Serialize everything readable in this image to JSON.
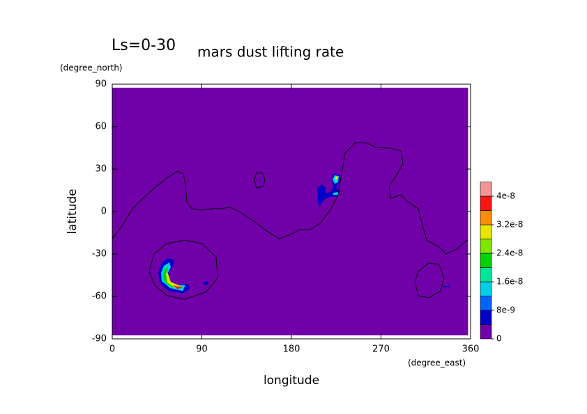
{
  "chart_data": {
    "type": "contour",
    "period_label": "Ls=0-30",
    "title": "mars dust lifting rate",
    "y_unit": "(degree_north)",
    "x_unit": "(degree_east)",
    "xlabel": "longitude",
    "ylabel": "latitude",
    "xlim": [
      0,
      360
    ],
    "ylim": [
      -90,
      90
    ],
    "xticks": [
      0,
      90,
      180,
      270,
      360
    ],
    "yticks": [
      -90,
      -60,
      -30,
      0,
      30,
      60,
      90
    ],
    "grid_extent": {
      "lon": [
        0,
        357.5
      ],
      "lat": [
        -87.5,
        87.5
      ]
    },
    "colorbar": {
      "levels": [
        0,
        4e-09,
        8e-09,
        1.2e-08,
        1.6e-08,
        2e-08,
        2.4e-08,
        2.8e-08,
        3.2e-08,
        3.6e-08,
        4e-08,
        4.4e-08
      ],
      "colors": [
        "#7000a8",
        "#0000c8",
        "#0064ff",
        "#00d0e8",
        "#00e69a",
        "#00d200",
        "#80e600",
        "#e6e600",
        "#ff8c00",
        "#ff1414",
        "#f09696"
      ],
      "ticks": [
        0,
        8e-09,
        1.6e-08,
        2.4e-08,
        3.2e-08,
        4e-08
      ]
    },
    "contour_lines": [
      {
        "color": "#000000",
        "lon": [
          0,
          9.8,
          20.3,
          30.8,
          42.7,
          55.3,
          65.8,
          71.4,
          73.5,
          74.9,
          79.8,
          90.3,
          100.8,
          109.9,
          118.3,
          128.8,
          139.3,
          153.3,
          167.4,
          177.9,
          188.4,
          198.9,
          209.4,
          219.9,
          226.9,
          230.4,
          233.9,
          244.4,
          255,
          265.5,
          279.5,
          290,
          292.1,
          286.5,
          278.1,
          279.5,
          290,
          297,
          307.5,
          311,
          315.9,
          328.5,
          335.5,
          346,
          356.5
        ],
        "lat": [
          -19.2,
          -10.3,
          2,
          9.3,
          16.7,
          24.1,
          28.5,
          26.6,
          19.2,
          6.9,
          2,
          1,
          2,
          2,
          3,
          -0.5,
          -5.4,
          -12.8,
          -19.2,
          -16.7,
          -12.8,
          -12.8,
          -7.9,
          2,
          11.8,
          26.6,
          41.3,
          48.7,
          48.7,
          45.2,
          44.8,
          42.8,
          33.9,
          26.6,
          17.7,
          9.3,
          11.8,
          6.9,
          2,
          -7.9,
          -20.2,
          -25.1,
          -30,
          -26.6,
          -20.2
        ]
      },
      {
        "color": "#000000",
        "lon": [
          142.8,
          144.9,
          150.5,
          153.3,
          151.9,
          144.9,
          142.8
        ],
        "lat": [
          22.6,
          27.5,
          27.5,
          22.6,
          17.7,
          16.7,
          22.6
        ]
      },
      {
        "color": "#000000",
        "lon": [
          37.1,
          42,
          54.6,
          72.8,
          90.3,
          104.4,
          105.8,
          93.9,
          72.8,
          55.3,
          42.7,
          37.1
        ],
        "lat": [
          -42.3,
          -30,
          -22.6,
          -20.2,
          -22.6,
          -32.5,
          -47.2,
          -57,
          -62,
          -59.5,
          -52.1,
          -42.3
        ]
      },
      {
        "color": "#000000",
        "lon": [
          304,
          307.5,
          318,
          328.5,
          333.4,
          329.9,
          318,
          307.5,
          304
        ],
        "lat": [
          -49.7,
          -42.3,
          -36.4,
          -37.4,
          -47.2,
          -56.1,
          -61,
          -59.5,
          -49.7
        ]
      }
    ],
    "filled_contours": [
      {
        "level": 4e-09,
        "lon": [
          49.7,
          55.3,
          62.3,
          60.9,
          56.7,
          58.8,
          66.5,
          74.9,
          78.4,
          70.7,
          56.7,
          47.6,
          46.2
        ],
        "lat": [
          -36.4,
          -33,
          -34,
          -38.4,
          -43.3,
          -49.2,
          -52.6,
          -51.1,
          -54.1,
          -58,
          -56.1,
          -50.2,
          -43.3
        ]
      },
      {
        "level": 1.2e-08,
        "lon": [
          51.8,
          57.4,
          58.8,
          55.3,
          58.1,
          66.5,
          73.5,
          70.7,
          58.1,
          49.7,
          49
        ],
        "lat": [
          -38.4,
          -35.9,
          -39.3,
          -44.3,
          -49.7,
          -52.1,
          -52.1,
          -56.1,
          -54.1,
          -49.2,
          -43.3
        ]
      },
      {
        "level": 2e-08,
        "lon": [
          53.2,
          56,
          53.9,
          57.4,
          67.2,
          72.1,
          59.5,
          51.8,
          51.1
        ],
        "lat": [
          -40.3,
          -38.9,
          -44.8,
          -50.2,
          -52.6,
          -54.1,
          -53.6,
          -49.2,
          -44.3
        ]
      },
      {
        "level": 2.8e-08,
        "lon": [
          53.9,
          56,
          58.8,
          67.9,
          63.7,
          55.3
        ],
        "lat": [
          -43.3,
          -43.8,
          -49.7,
          -52.6,
          -54.1,
          -50.2
        ]
      },
      {
        "level": 3.6e-08,
        "lon": [
          60.9,
          66.5,
          70.7,
          65.1
        ],
        "lat": [
          -52.1,
          -53.1,
          -54.1,
          -54.6
        ]
      },
      {
        "level": 4e-09,
        "lon": [
          91,
          95.3,
          96.7,
          92.5
        ],
        "lat": [
          -50.2,
          -49.2,
          -51.6,
          -52.1
        ]
      },
      {
        "level": 4e-09,
        "lon": [
          332.7,
          338.3,
          338.3,
          332.7
        ],
        "lat": [
          -52.6,
          -52.6,
          -53.6,
          -53.6
        ]
      },
      {
        "level": 4e-09,
        "lon": [
          205.9,
          210.8,
          214.3,
          214.3,
          219.9,
          222,
          220.6,
          223.4,
          229,
          228.3,
          224.8,
          229,
          226.9,
          219.9,
          214.3,
          210.8,
          208,
          206.6
        ],
        "lat": [
          16.7,
          19.2,
          16.7,
          12.8,
          14.3,
          16.7,
          24.1,
          26.6,
          25.6,
          20.7,
          16.7,
          14.3,
          10.8,
          10.3,
          9.3,
          6.9,
          3,
          6.9
        ]
      },
      {
        "level": 1.2e-08,
        "lon": [
          221.3,
          223.4,
          227.6,
          226.9,
          223.4
        ],
        "lat": [
          22.6,
          25.6,
          25.1,
          20.7,
          19.7
        ]
      },
      {
        "level": 1.2e-08,
        "lon": [
          222,
          227.6,
          227.6,
          222
        ],
        "lat": [
          13.3,
          13.8,
          11.8,
          11.8
        ]
      },
      {
        "level": 2.8e-08,
        "lon": [
          223.4,
          225.5,
          226.9,
          224.8
        ],
        "lat": [
          23.6,
          25.1,
          23.6,
          22.1
        ]
      }
    ]
  }
}
